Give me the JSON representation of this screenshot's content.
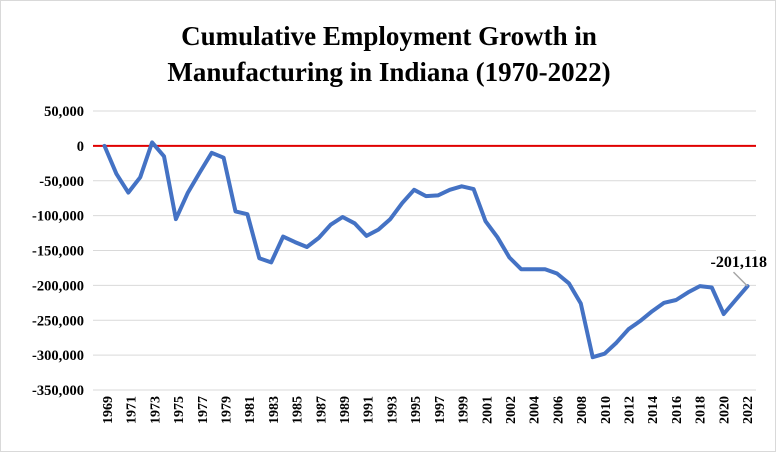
{
  "chart_data": {
    "type": "line",
    "title": [
      "Cumulative Employment Growth  in",
      "Manufacturing in Indiana  (1970-2022)"
    ],
    "xlabel": "",
    "ylabel": "",
    "ylim": [
      -350000,
      50000
    ],
    "yticks": [
      50000,
      0,
      -50000,
      -100000,
      -150000,
      -200000,
      -250000,
      -300000,
      -350000
    ],
    "ytick_labels": [
      "50,000",
      "0",
      "-50,000",
      "-100,000",
      "-150,000",
      "-200,000",
      "-250,000",
      "-300,000",
      "-350,000"
    ],
    "xtick_labels": [
      "1969",
      "1971",
      "1973",
      "1975",
      "1977",
      "1979",
      "1981",
      "1983",
      "1985",
      "1987",
      "1989",
      "1991",
      "1993",
      "1995",
      "1997",
      "1999",
      "2001",
      "2002",
      "2004",
      "2006",
      "2008",
      "2010",
      "2012",
      "2014",
      "2016",
      "2018",
      "2020",
      "2022"
    ],
    "grid": true,
    "zero_line_color": "#e00000",
    "series": [
      {
        "name": "Cumulative Employment Growth",
        "color": "#4472c4",
        "values": [
          0,
          -40000,
          -67000,
          -45000,
          5000,
          -15000,
          -105000,
          -67000,
          -38000,
          -10000,
          -17000,
          -94000,
          -98000,
          -161000,
          -167000,
          -130000,
          -138000,
          -145000,
          -132000,
          -113000,
          -102000,
          -111000,
          -129000,
          -120000,
          -105000,
          -82000,
          -63000,
          -72000,
          -71000,
          -63000,
          -58000,
          -62000,
          -108000,
          -131000,
          -160000,
          -177000,
          -177000,
          -177000,
          -183000,
          -197000,
          -226000,
          -303000,
          -298000,
          -282000,
          -263000,
          -251000,
          -237000,
          -225000,
          -221000,
          -210000,
          -201000,
          -203000,
          -241000,
          -221000,
          -201118
        ]
      }
    ],
    "annotation": {
      "label": "-201,118",
      "value": -201118
    }
  }
}
